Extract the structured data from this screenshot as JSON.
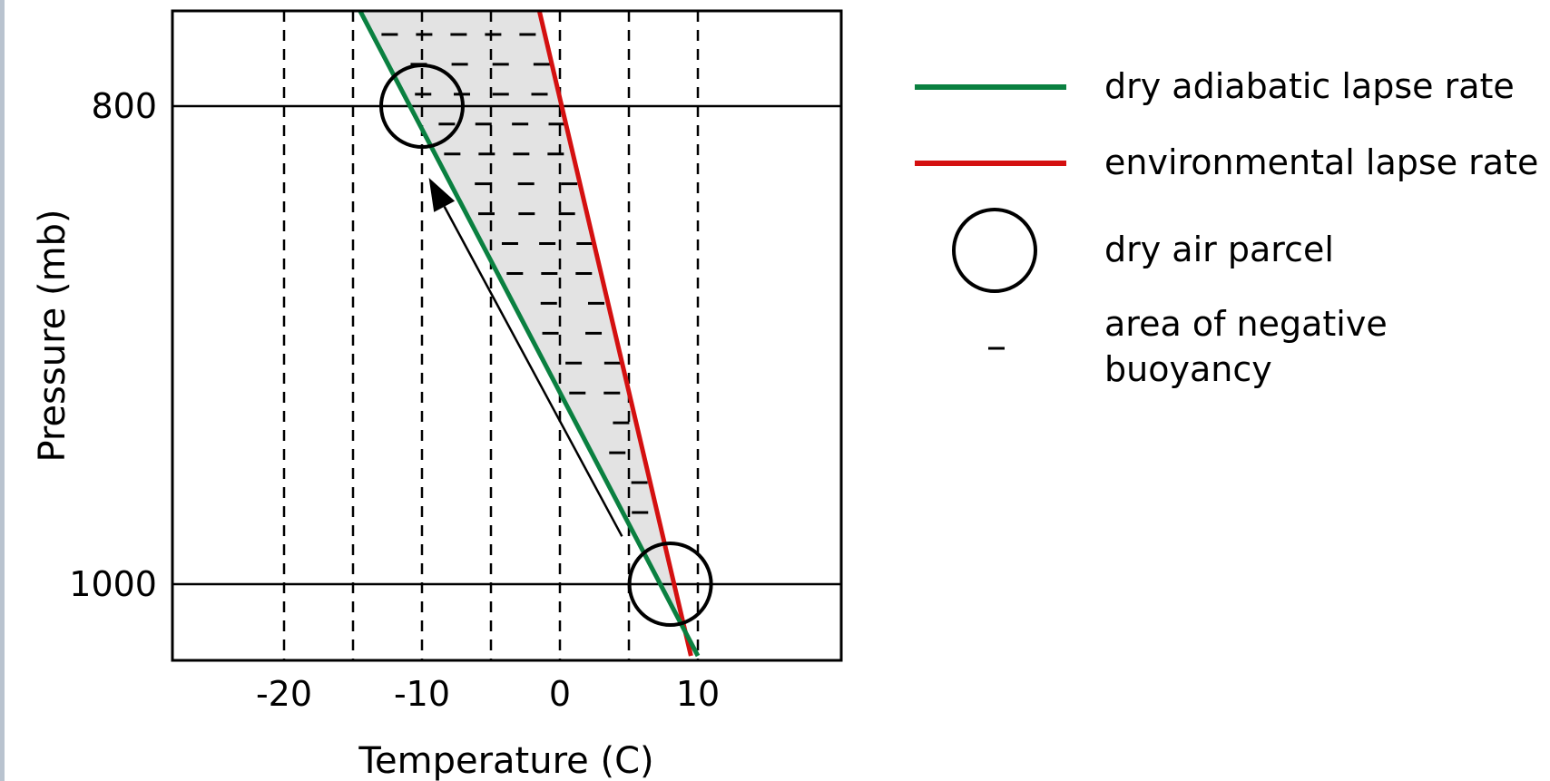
{
  "chart_data": {
    "type": "line",
    "title": "",
    "xlabel": "Temperature (C)",
    "ylabel": "Pressure (mb)",
    "xlim": [
      -28,
      18.5
    ],
    "x_ticks": [
      -20,
      -10,
      0,
      10
    ],
    "x_tick_labels": [
      "-20",
      "-10",
      "0",
      "10"
    ],
    "x_dashed_gridlines": [
      -20,
      -15,
      -10,
      -5,
      0,
      5,
      10
    ],
    "y_ticks": [
      800,
      1000
    ],
    "y_tick_labels": [
      "800",
      "1000"
    ],
    "y_solid_gridlines": [
      800,
      1000
    ],
    "grid": true,
    "series": [
      {
        "name": "dry adiabatic lapse rate",
        "color": "#0a8040",
        "points": [
          [
            -14.5,
            760
          ],
          [
            10,
            1030
          ]
        ]
      },
      {
        "name": "environmental lapse rate",
        "color": "#d41010",
        "points": [
          [
            -1.5,
            760
          ],
          [
            9.5,
            1030
          ]
        ]
      }
    ],
    "parcels": {
      "name": "dry air parcel",
      "positions": [
        [
          -10,
          800
        ],
        [
          8,
          1000
        ]
      ]
    },
    "negative_buoyancy": {
      "name": "area of negative buoyancy",
      "fill": "#e3e3e3",
      "marker": "–"
    },
    "arrow": {
      "from": [
        4.5,
        980
      ],
      "to": [
        -9.5,
        830
      ]
    },
    "legend": {
      "placement": "right",
      "items": [
        {
          "symbol": "green-line",
          "label": "dry adiabatic lapse rate"
        },
        {
          "symbol": "red-line",
          "label": "environmental lapse rate"
        },
        {
          "symbol": "circle",
          "label": "dry air parcel"
        },
        {
          "symbol": "dash",
          "label": "area of negative\nbuoyancy"
        }
      ]
    }
  }
}
